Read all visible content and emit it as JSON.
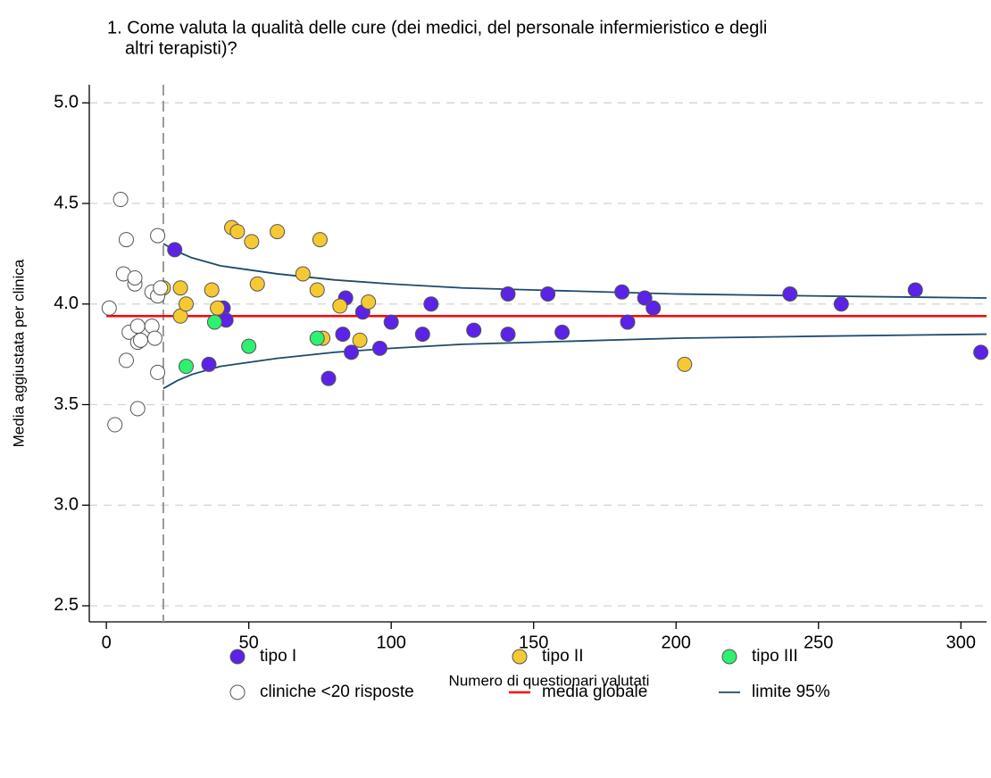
{
  "chart_data": {
    "type": "scatter",
    "title": [
      "1. Come valuta la qualità delle cure (dei medici, del personale infermieristico e degli",
      "altri terapisti)?"
    ],
    "xlabel": "Numero di questionari valutati",
    "ylabel": "Media aggiustata per clinica",
    "xlim": [
      -6,
      309
    ],
    "ylim": [
      2.42,
      5.09
    ],
    "xticks": [
      0,
      50,
      100,
      150,
      200,
      250,
      300
    ],
    "yticks": [
      2.5,
      {
        "value": 3,
        "label": "3.0"
      },
      3.5,
      {
        "value": 4,
        "label": "4.0"
      },
      4.5,
      {
        "value": 5,
        "label": "5.0"
      }
    ],
    "grid": true,
    "vline": 20,
    "series": [
      {
        "name": "tipo I",
        "style": "marker",
        "color": "#5b22e8",
        "x": [
          24,
          36,
          41,
          42,
          84,
          83,
          86,
          90,
          78,
          96,
          100,
          111,
          114,
          129,
          141,
          141,
          155,
          160,
          181,
          183,
          189,
          192,
          240,
          258,
          284,
          307
        ],
        "values": [
          4.27,
          3.7,
          3.98,
          3.92,
          4.03,
          3.85,
          3.76,
          3.96,
          3.63,
          3.78,
          3.91,
          3.85,
          4.0,
          3.87,
          4.05,
          3.85,
          4.05,
          3.86,
          4.06,
          3.91,
          4.03,
          3.98,
          4.05,
          4.0,
          4.07,
          3.76
        ]
      },
      {
        "name": "tipo II",
        "style": "marker",
        "color": "#f5c933",
        "x": [
          20,
          26,
          26,
          28,
          37,
          39,
          44,
          46,
          51,
          53,
          60,
          69,
          74,
          75,
          76,
          82,
          89,
          92,
          203
        ],
        "values": [
          4.08,
          4.08,
          3.94,
          4.0,
          4.07,
          3.98,
          4.38,
          4.36,
          4.31,
          4.1,
          4.36,
          4.15,
          4.07,
          4.32,
          3.83,
          3.99,
          3.82,
          4.01,
          3.7
        ]
      },
      {
        "name": "tipo III",
        "style": "marker",
        "color": "#2ef071",
        "x": [
          28,
          38,
          50,
          74
        ],
        "values": [
          3.69,
          3.91,
          3.79,
          3.83
        ]
      },
      {
        "name": "cliniche <20 risposte",
        "style": "marker",
        "color": "#ffffff",
        "x": [
          1,
          5,
          6,
          7,
          7,
          8,
          10,
          10,
          11,
          11,
          11,
          12,
          3,
          16,
          16,
          17,
          18,
          18,
          18,
          19
        ],
        "values": [
          3.98,
          4.52,
          4.15,
          4.32,
          3.72,
          3.86,
          4.1,
          4.13,
          3.81,
          3.89,
          3.48,
          3.82,
          3.4,
          4.06,
          3.89,
          3.83,
          4.34,
          4.04,
          3.66,
          4.08
        ]
      },
      {
        "name": "media globale",
        "style": "line",
        "color": "#ff0000",
        "x": [
          0,
          309
        ],
        "values": [
          3.94,
          3.94
        ]
      },
      {
        "name": "limite 95%",
        "style": "line",
        "color": "#1c4a6e",
        "x": [
          20,
          25,
          30,
          40,
          50,
          60,
          80,
          100,
          125,
          150,
          200,
          250,
          309
        ],
        "values": [
          4.3,
          4.26,
          4.23,
          4.19,
          4.17,
          4.15,
          4.12,
          4.1,
          4.08,
          4.07,
          4.05,
          4.04,
          4.03
        ]
      },
      {
        "style": "line",
        "color": "#1c4a6e",
        "x": [
          20,
          25,
          30,
          40,
          50,
          60,
          80,
          100,
          125,
          150,
          200,
          250,
          309
        ],
        "values": [
          3.58,
          3.62,
          3.65,
          3.69,
          3.71,
          3.73,
          3.76,
          3.78,
          3.8,
          3.81,
          3.83,
          3.84,
          3.85
        ]
      }
    ]
  }
}
